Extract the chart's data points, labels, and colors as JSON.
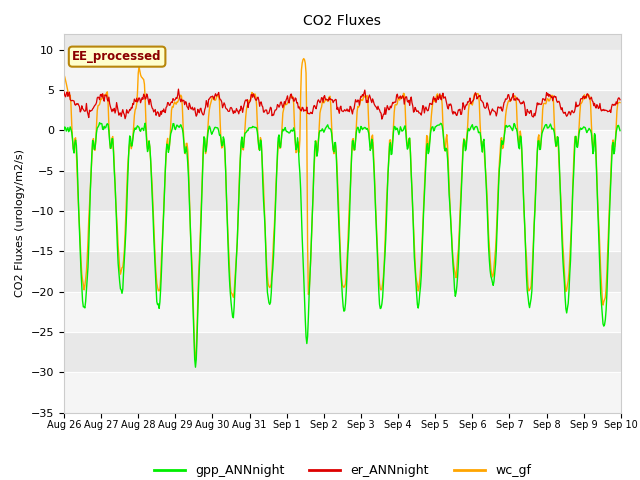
{
  "title": "CO2 Fluxes",
  "ylabel": "CO2 Fluxes (urology/m2/s)",
  "ylim": [
    -35,
    12
  ],
  "yticks": [
    -35,
    -30,
    -25,
    -20,
    -15,
    -10,
    -5,
    0,
    5,
    10
  ],
  "background_color": "#ffffff",
  "plot_bg_color": "#e8e8e8",
  "stripe_color": "#f5f5f5",
  "gpp_color": "#00ee00",
  "er_color": "#dd0000",
  "wc_color": "#ffa500",
  "legend_label_text": "EE_processed",
  "legend_labels": [
    "gpp_ANNnight",
    "er_ANNnight",
    "wc_gf"
  ],
  "n_days": 15,
  "n_points_per_day": 48,
  "figsize": [
    6.4,
    4.8
  ],
  "dpi": 100
}
